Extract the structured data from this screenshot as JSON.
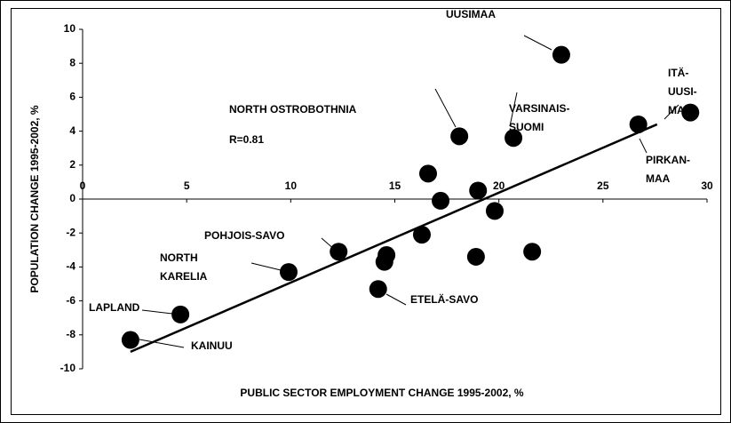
{
  "chart_data": {
    "type": "scatter",
    "xlabel": "PUBLIC SECTOR EMPLOYMENT CHANGE 1995-2002, %",
    "ylabel": "POPULATION CHANGE 1995-2002, %",
    "annotation": "R=0.81",
    "xlim": [
      0,
      30
    ],
    "xticks": [
      0,
      5,
      10,
      15,
      20,
      25,
      30
    ],
    "ylim": [
      -10,
      10
    ],
    "yticks": [
      -10,
      -8,
      -6,
      -4,
      -2,
      0,
      2,
      4,
      6,
      8,
      10
    ],
    "color": "#000000",
    "x": [
      23.0,
      29.2,
      26.7,
      20.7,
      18.1,
      16.6,
      17.2,
      19.0,
      19.8,
      16.3,
      21.6,
      18.9,
      14.6,
      14.5,
      14.2,
      12.3,
      9.9,
      4.7,
      2.3
    ],
    "y": [
      8.5,
      5.1,
      4.4,
      3.6,
      3.7,
      1.5,
      -0.1,
      0.5,
      -0.7,
      -2.1,
      -3.1,
      -3.4,
      -3.3,
      -3.7,
      -5.3,
      -3.1,
      -4.3,
      -6.8,
      -8.3
    ],
    "labels": [
      "UUSIMAA",
      "ITÄ-\nUUSI-\nMA",
      "PIRKAN-\nMAA",
      "VARSINAIS-\nSUOMI",
      "NORTH OSTROBOTHNIA",
      null,
      null,
      null,
      null,
      null,
      null,
      null,
      null,
      null,
      "ETELÄ-SAVO",
      "POHJOIS-SAVO",
      "NORTH\nKARELIA",
      "LAPLAND",
      "KAINUU"
    ],
    "trendline": {
      "x": [
        2.3,
        27.6
      ],
      "y": [
        -9.0,
        4.4
      ]
    }
  }
}
